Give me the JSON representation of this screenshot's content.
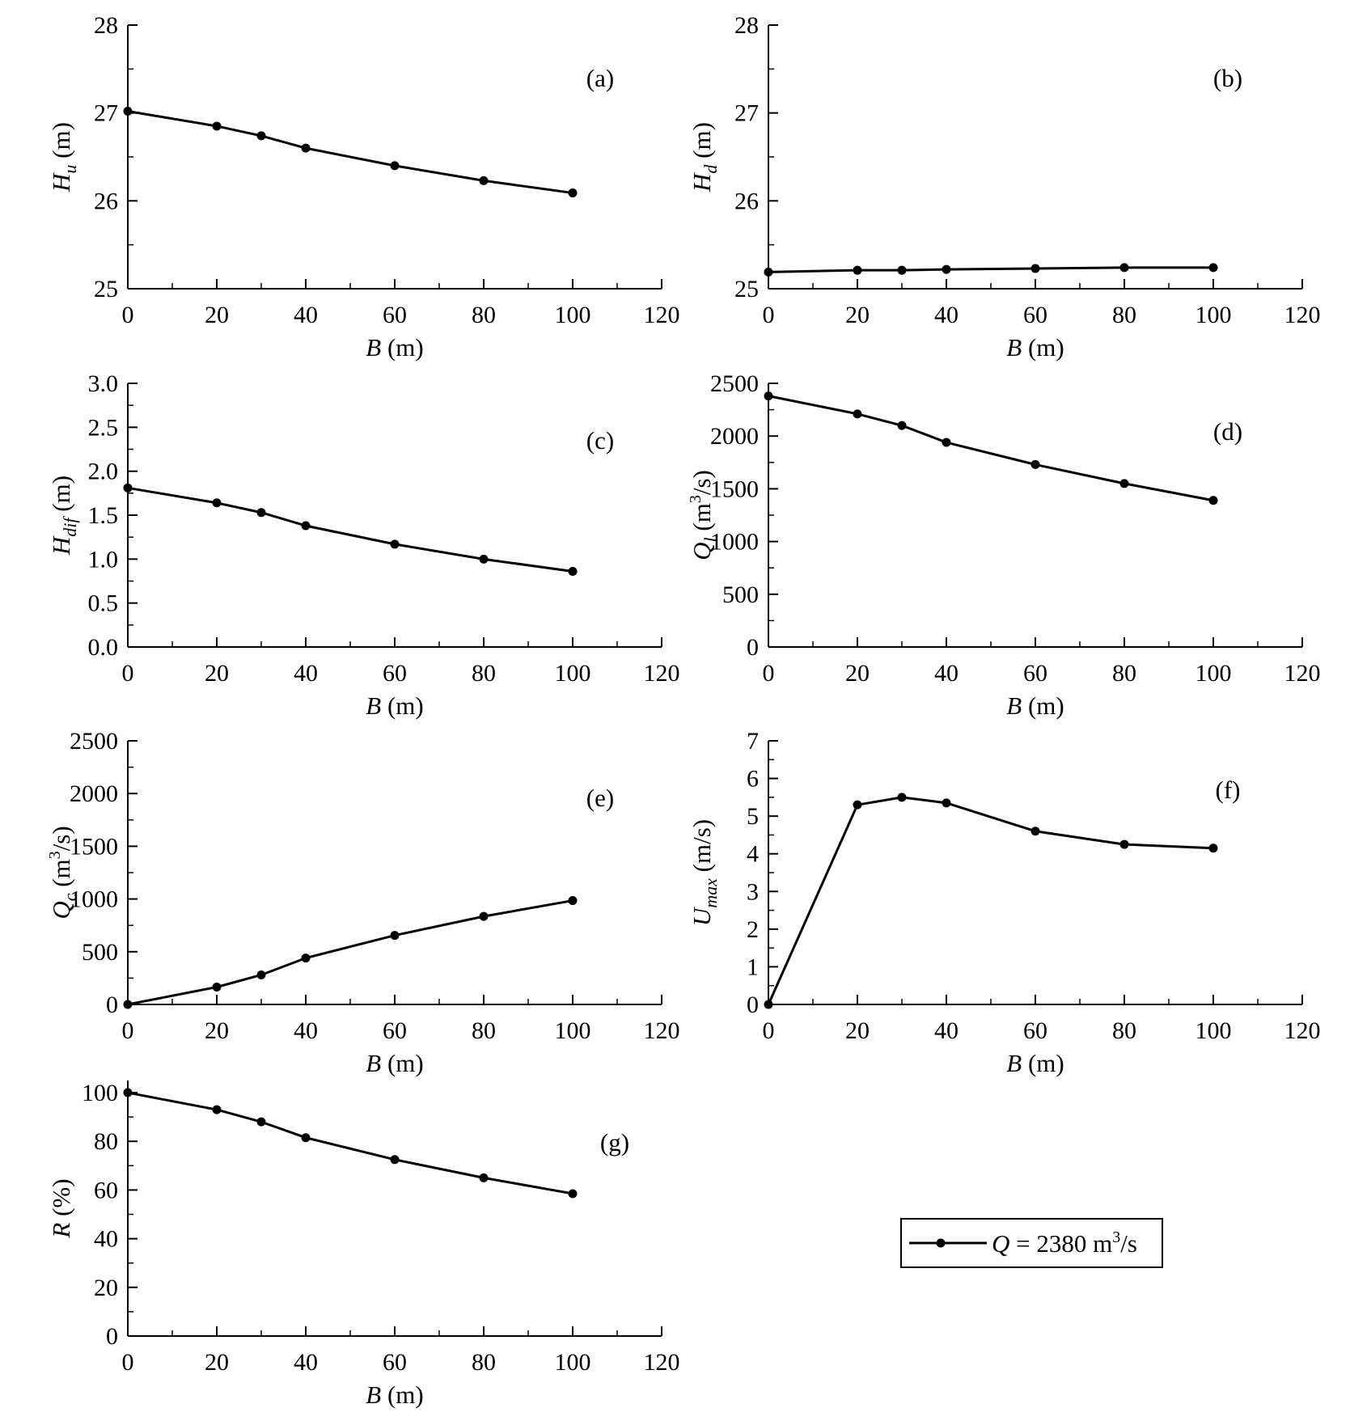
{
  "legend": {
    "label": "Q = 2380 m³/s",
    "label_main": "Q",
    "label_rest": " = 2380 m",
    "label_sup": "3",
    "label_end": "/s"
  },
  "chart_data": [
    {
      "type": "line",
      "tag": "(a)",
      "ylabel": {
        "main": "H",
        "sub": "u",
        "unit": " (m)",
        "sup": "",
        "unit_end": ""
      },
      "xlabel": {
        "main": "B",
        "unit": " (m)"
      },
      "xlim": [
        0,
        120
      ],
      "xticks": [
        0,
        20,
        40,
        60,
        80,
        100,
        120
      ],
      "xtick_labels": [
        "0",
        "20",
        "40",
        "60",
        "80",
        "100",
        "120"
      ],
      "ylim": [
        25,
        28
      ],
      "yticks": [
        25,
        26,
        27,
        28
      ],
      "ytick_labels": [
        "25",
        "26",
        "27",
        "28"
      ],
      "x": [
        0,
        20,
        30,
        40,
        60,
        80,
        100
      ],
      "y": [
        27.02,
        26.85,
        26.74,
        26.6,
        26.4,
        26.23,
        26.09
      ]
    },
    {
      "type": "line",
      "tag": "(b)",
      "ylabel": {
        "main": "H",
        "sub": "d",
        "unit": " (m)",
        "sup": "",
        "unit_end": ""
      },
      "xlabel": {
        "main": "B",
        "unit": " (m)"
      },
      "xlim": [
        0,
        120
      ],
      "xticks": [
        0,
        20,
        40,
        60,
        80,
        100,
        120
      ],
      "xtick_labels": [
        "0",
        "20",
        "40",
        "60",
        "80",
        "100",
        "120"
      ],
      "ylim": [
        25,
        28
      ],
      "yticks": [
        25,
        26,
        27,
        28
      ],
      "ytick_labels": [
        "25",
        "26",
        "27",
        "28"
      ],
      "x": [
        0,
        20,
        30,
        40,
        60,
        80,
        100
      ],
      "y": [
        25.19,
        25.21,
        25.21,
        25.22,
        25.23,
        25.24,
        25.24
      ]
    },
    {
      "type": "line",
      "tag": "(c)",
      "ylabel": {
        "main": "H",
        "sub": "dif",
        "unit": " (m)",
        "sup": "",
        "unit_end": ""
      },
      "xlabel": {
        "main": "B",
        "unit": " (m)"
      },
      "xlim": [
        0,
        120
      ],
      "xticks": [
        0,
        20,
        40,
        60,
        80,
        100,
        120
      ],
      "xtick_labels": [
        "0",
        "20",
        "40",
        "60",
        "80",
        "100",
        "120"
      ],
      "ylim": [
        0,
        3
      ],
      "yticks": [
        0,
        0.5,
        1,
        1.5,
        2,
        2.5,
        3
      ],
      "ytick_labels": [
        "0.0",
        "0.5",
        "1.0",
        "1.5",
        "2.0",
        "2.5",
        "3.0"
      ],
      "x": [
        0,
        20,
        30,
        40,
        60,
        80,
        100
      ],
      "y": [
        1.81,
        1.64,
        1.53,
        1.38,
        1.17,
        1.0,
        0.86
      ]
    },
    {
      "type": "line",
      "tag": "(d)",
      "ylabel": {
        "main": "Q",
        "sub": "l",
        "unit": " (m",
        "sup": "3",
        "unit_end": "/s)"
      },
      "xlabel": {
        "main": "B",
        "unit": " (m)"
      },
      "xlim": [
        0,
        120
      ],
      "xticks": [
        0,
        20,
        40,
        60,
        80,
        100,
        120
      ],
      "xtick_labels": [
        "0",
        "20",
        "40",
        "60",
        "80",
        "100",
        "120"
      ],
      "ylim": [
        0,
        2500
      ],
      "yticks": [
        0,
        500,
        1000,
        1500,
        2000,
        2500
      ],
      "ytick_labels": [
        "0",
        "500",
        "1000",
        "1500",
        "2000",
        "2500"
      ],
      "x": [
        0,
        20,
        30,
        40,
        60,
        80,
        100
      ],
      "y": [
        2380,
        2210,
        2100,
        1940,
        1730,
        1550,
        1390
      ]
    },
    {
      "type": "line",
      "tag": "(e)",
      "ylabel": {
        "main": "Q",
        "sub": "c",
        "unit": " (m",
        "sup": "3",
        "unit_end": "/s)"
      },
      "xlabel": {
        "main": "B",
        "unit": " (m)"
      },
      "xlim": [
        0,
        120
      ],
      "xticks": [
        0,
        20,
        40,
        60,
        80,
        100,
        120
      ],
      "xtick_labels": [
        "0",
        "20",
        "40",
        "60",
        "80",
        "100",
        "120"
      ],
      "ylim": [
        0,
        2500
      ],
      "yticks": [
        0,
        500,
        1000,
        1500,
        2000,
        2500
      ],
      "ytick_labels": [
        "0",
        "500",
        "1000",
        "1500",
        "2000",
        "2500"
      ],
      "x": [
        0,
        20,
        30,
        40,
        60,
        80,
        100
      ],
      "y": [
        0,
        165,
        280,
        440,
        655,
        835,
        985
      ]
    },
    {
      "type": "line",
      "tag": "(f)",
      "ylabel": {
        "main": "U",
        "sub": "max",
        "unit": " (m/s)",
        "sup": "",
        "unit_end": ""
      },
      "xlabel": {
        "main": "B",
        "unit": " (m)"
      },
      "xlim": [
        0,
        120
      ],
      "xticks": [
        0,
        20,
        40,
        60,
        80,
        100,
        120
      ],
      "xtick_labels": [
        "0",
        "20",
        "40",
        "60",
        "80",
        "100",
        "120"
      ],
      "ylim": [
        0,
        7
      ],
      "yticks": [
        0,
        1,
        2,
        3,
        4,
        5,
        6,
        7
      ],
      "ytick_labels": [
        "0",
        "1",
        "2",
        "3",
        "4",
        "5",
        "6",
        "7"
      ],
      "x": [
        0,
        20,
        30,
        40,
        60,
        80,
        100
      ],
      "y": [
        0,
        5.3,
        5.5,
        5.35,
        4.6,
        4.25,
        4.15
      ]
    },
    {
      "type": "line",
      "tag": "(g)",
      "ylabel": {
        "main": "R",
        "sub": "",
        "unit": " (%)",
        "sup": "",
        "unit_end": ""
      },
      "xlabel": {
        "main": "B",
        "unit": " (m)"
      },
      "xlim": [
        0,
        120
      ],
      "xticks": [
        0,
        20,
        40,
        60,
        80,
        100,
        120
      ],
      "xtick_labels": [
        "0",
        "20",
        "40",
        "60",
        "80",
        "100",
        "120"
      ],
      "ylim": [
        0,
        105
      ],
      "yticks": [
        0,
        20,
        40,
        60,
        80,
        100
      ],
      "ytick_labels": [
        "0",
        "20",
        "40",
        "60",
        "80",
        "100"
      ],
      "x": [
        0,
        20,
        30,
        40,
        60,
        80,
        100
      ],
      "y": [
        100,
        93,
        88,
        81.5,
        72.5,
        65,
        58.5
      ]
    }
  ]
}
